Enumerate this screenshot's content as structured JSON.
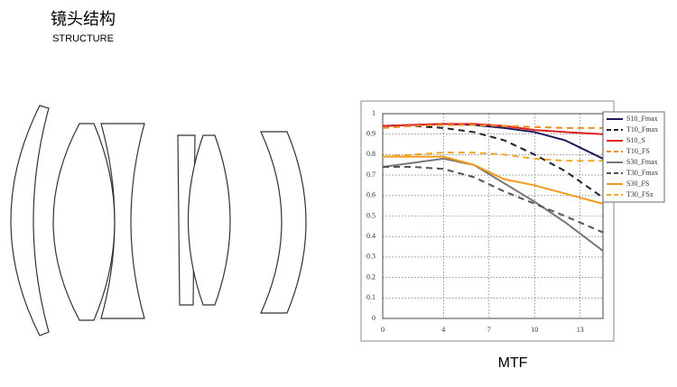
{
  "header": {
    "title": "镜头结构",
    "subtitle": "STRUCTURE"
  },
  "chart_data": {
    "type": "line",
    "title": "MTF",
    "x": [
      0,
      2,
      4,
      6,
      8,
      10,
      12,
      14.5
    ],
    "xlim": [
      0,
      14.5
    ],
    "xticks": [
      0,
      4,
      7,
      10,
      13
    ],
    "ylim": [
      0,
      1
    ],
    "yticks": [
      0,
      0.1,
      0.2,
      0.3,
      0.4,
      0.5,
      0.6,
      0.7,
      0.8,
      0.9,
      1
    ],
    "grid": true,
    "legend": "upper right",
    "series": [
      {
        "name": "S10_Fmax",
        "color": "#1c1c5c",
        "dash": false,
        "values": [
          0.94,
          0.945,
          0.95,
          0.945,
          0.93,
          0.91,
          0.87,
          0.78
        ]
      },
      {
        "name": "T10_Fmax",
        "color": "#222222",
        "dash": true,
        "values": [
          0.94,
          0.94,
          0.93,
          0.91,
          0.87,
          0.8,
          0.72,
          0.59
        ]
      },
      {
        "name": "S10_S",
        "color": "#e02020",
        "dash": false,
        "values": [
          0.94,
          0.945,
          0.95,
          0.95,
          0.94,
          0.92,
          0.91,
          0.9
        ]
      },
      {
        "name": "T10_FS",
        "color": "#f08a1e",
        "dash": true,
        "values": [
          0.93,
          0.94,
          0.945,
          0.945,
          0.94,
          0.935,
          0.93,
          0.93
        ]
      },
      {
        "name": "S30_Fmax",
        "color": "#777777",
        "dash": false,
        "values": [
          0.74,
          0.76,
          0.78,
          0.75,
          0.66,
          0.57,
          0.47,
          0.33
        ]
      },
      {
        "name": "T30_Fmax",
        "color": "#555555",
        "dash": true,
        "values": [
          0.74,
          0.74,
          0.73,
          0.69,
          0.62,
          0.56,
          0.5,
          0.42
        ]
      },
      {
        "name": "S30_FS",
        "color": "#f39a1e",
        "dash": false,
        "values": [
          0.79,
          0.79,
          0.79,
          0.75,
          0.68,
          0.65,
          0.61,
          0.56
        ]
      },
      {
        "name": "T30_FSx",
        "color": "#f5a623",
        "dash": true,
        "values": [
          0.79,
          0.8,
          0.81,
          0.81,
          0.8,
          0.78,
          0.77,
          0.77
        ]
      }
    ]
  }
}
